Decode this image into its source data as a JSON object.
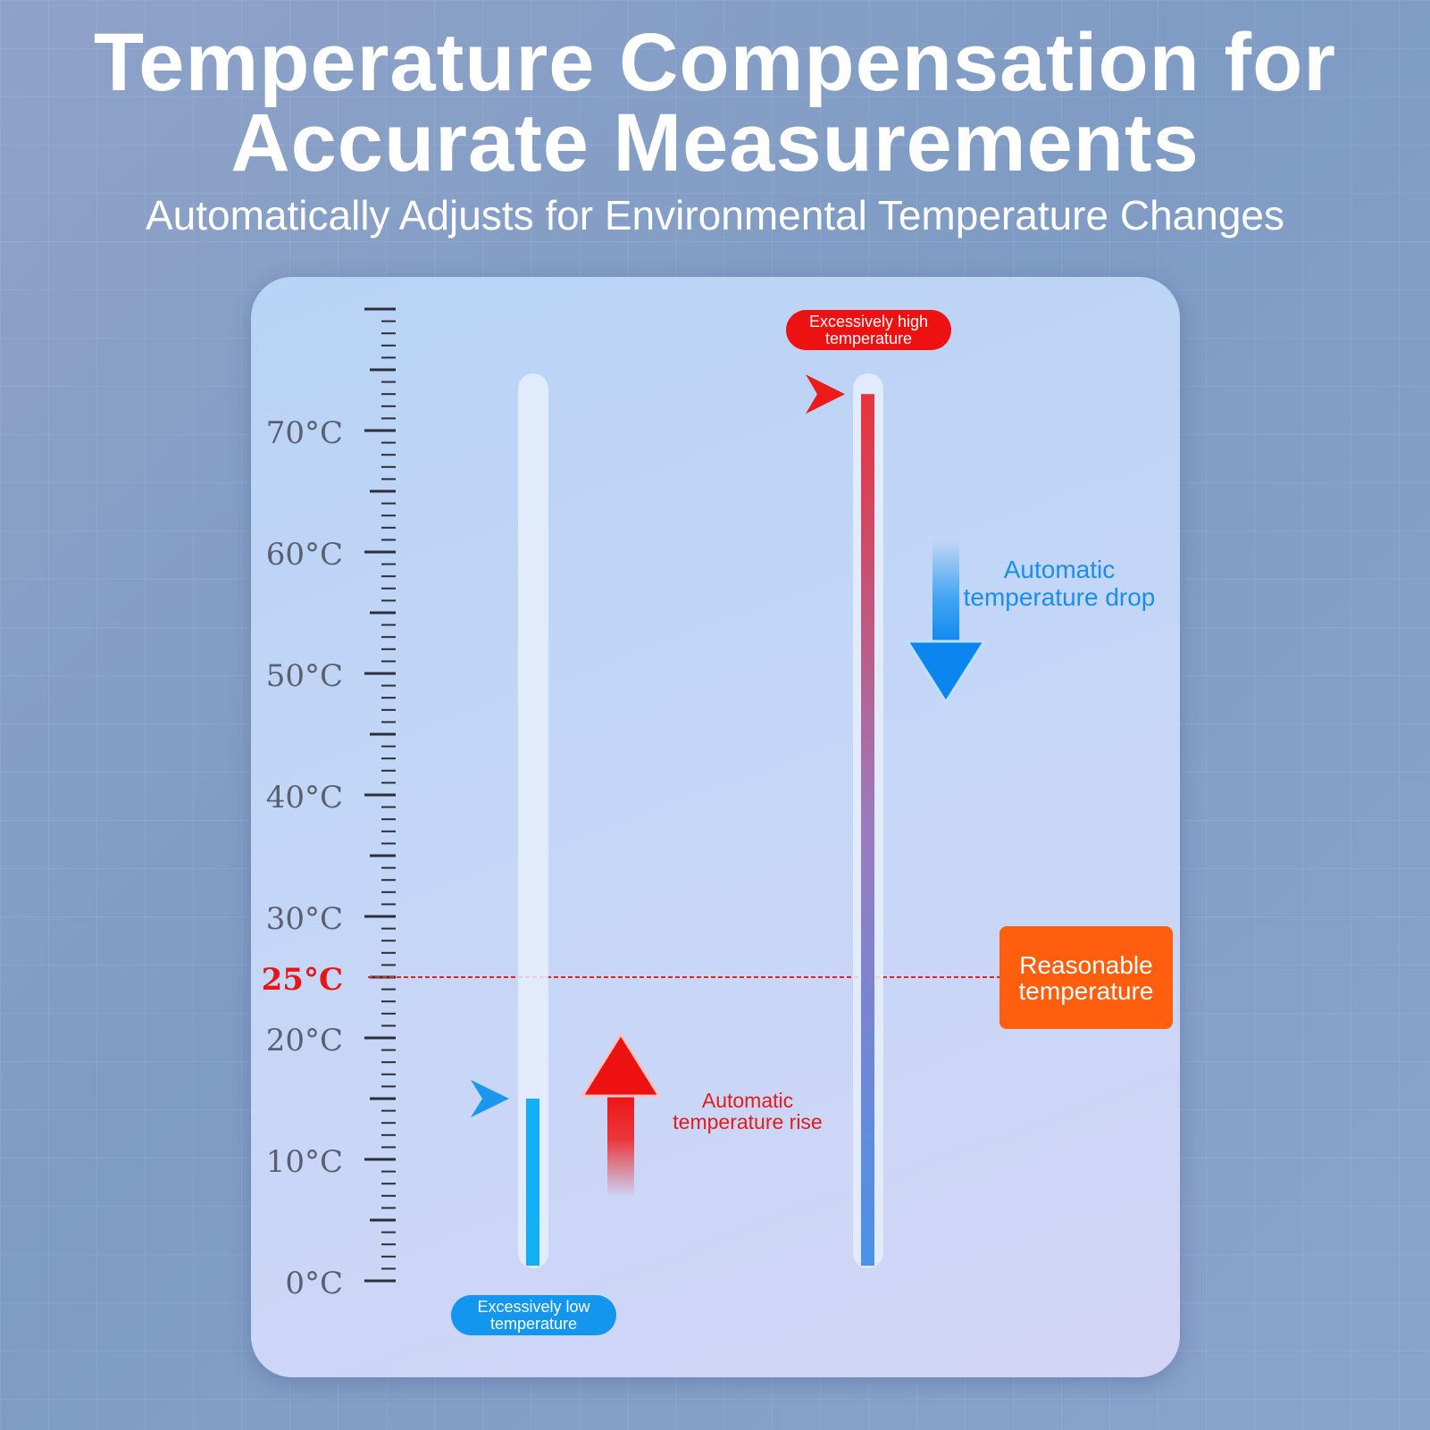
{
  "header": {
    "title_line1": "Temperature Compensation for",
    "title_line2": "Accurate Measurements",
    "subtitle": "Automatically Adjusts for Environmental Temperature Changes"
  },
  "scale": {
    "unit": "°C",
    "min": 0,
    "max": 80,
    "labels": [
      "0°C",
      "10°C",
      "20°C",
      "25°C",
      "30°C",
      "40°C",
      "50°C",
      "60°C",
      "70°C"
    ],
    "label_values": [
      0,
      10,
      20,
      25,
      30,
      40,
      50,
      60,
      70
    ],
    "highlight_label": "25°C"
  },
  "thermometers": {
    "low": {
      "label": "Excessively low temperature",
      "reading": 15,
      "color": "#14aef2"
    },
    "high": {
      "label": "Excessively high temperature",
      "reading": 73,
      "color_top": "#e8333b",
      "color_bottom": "#4a92e8"
    }
  },
  "reference": {
    "value": 25,
    "label": "Reasonable temperature",
    "color": "#ff5e0e"
  },
  "annotations": {
    "drop": "Automatic temperature drop",
    "rise": "Automatic temperature rise"
  },
  "colors": {
    "red": "#ee1111",
    "blue": "#1296ee",
    "orange": "#ff5e0e"
  }
}
